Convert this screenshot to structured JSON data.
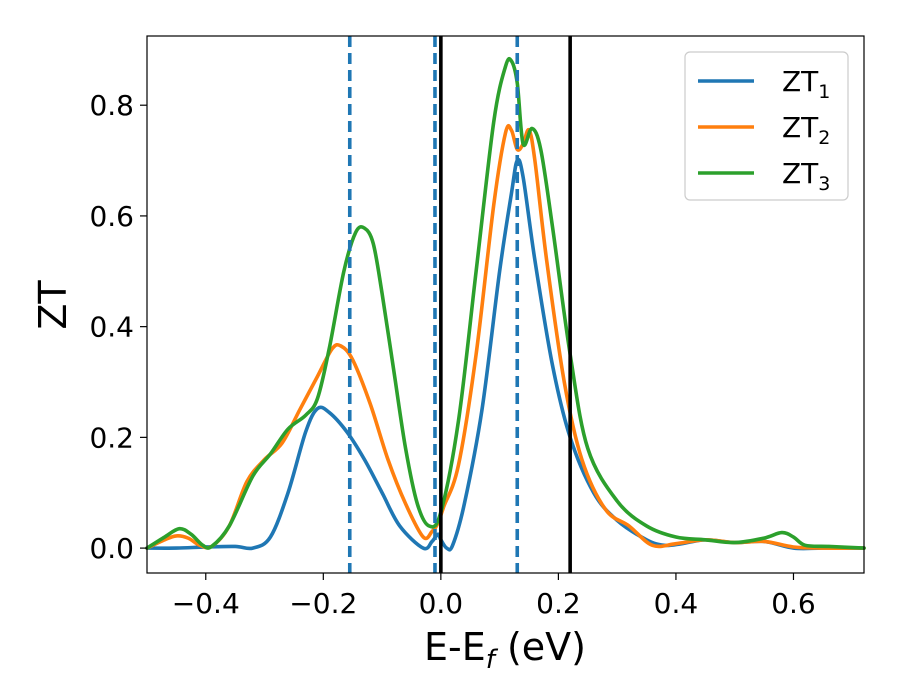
{
  "chart_data": {
    "type": "line",
    "title": "",
    "xlabel": "E-E",
    "xlabel_sub": "f",
    "xlabel_unit": " (eV)",
    "ylabel": "ZT",
    "xlim": [
      -0.5,
      0.72
    ],
    "ylim": [
      -0.045,
      0.925
    ],
    "xticks": [
      -0.4,
      -0.2,
      0.0,
      0.2,
      0.4,
      0.6
    ],
    "xtick_labels": [
      "−0.4",
      "−0.2",
      "0.0",
      "0.2",
      "0.4",
      "0.6"
    ],
    "yticks": [
      0.0,
      0.2,
      0.4,
      0.6,
      0.8
    ],
    "ytick_labels": [
      "0.0",
      "0.2",
      "0.4",
      "0.6",
      "0.8"
    ],
    "grid": false,
    "legend_position": "top-right",
    "vlines_dashed": {
      "color": "#1f77b4",
      "x": [
        -0.155,
        -0.01,
        0.13
      ]
    },
    "vlines_solid": {
      "color": "#000000",
      "x": [
        0.0,
        0.22
      ]
    },
    "series": [
      {
        "name": "ZT",
        "name_sub": "1",
        "color": "#1f77b4",
        "points": [
          [
            -0.5,
            0.0
          ],
          [
            -0.45,
            0.0
          ],
          [
            -0.4,
            0.002
          ],
          [
            -0.35,
            0.003
          ],
          [
            -0.32,
            0.0
          ],
          [
            -0.29,
            0.02
          ],
          [
            -0.26,
            0.1
          ],
          [
            -0.23,
            0.21
          ],
          [
            -0.21,
            0.252
          ],
          [
            -0.19,
            0.245
          ],
          [
            -0.16,
            0.21
          ],
          [
            -0.13,
            0.16
          ],
          [
            -0.1,
            0.1
          ],
          [
            -0.07,
            0.04
          ],
          [
            -0.03,
            0.0
          ],
          [
            -0.015,
            0.012
          ],
          [
            -0.005,
            0.025
          ],
          [
            0.0,
            0.015
          ],
          [
            0.01,
            0.0
          ],
          [
            0.02,
            0.005
          ],
          [
            0.04,
            0.08
          ],
          [
            0.07,
            0.25
          ],
          [
            0.1,
            0.5
          ],
          [
            0.12,
            0.64
          ],
          [
            0.13,
            0.7
          ],
          [
            0.14,
            0.67
          ],
          [
            0.16,
            0.52
          ],
          [
            0.19,
            0.33
          ],
          [
            0.22,
            0.2
          ],
          [
            0.26,
            0.1
          ],
          [
            0.3,
            0.05
          ],
          [
            0.35,
            0.015
          ],
          [
            0.38,
            0.005
          ],
          [
            0.41,
            0.008
          ],
          [
            0.45,
            0.015
          ],
          [
            0.5,
            0.01
          ],
          [
            0.55,
            0.012
          ],
          [
            0.6,
            0.0
          ],
          [
            0.65,
            0.0
          ],
          [
            0.72,
            0.0
          ]
        ]
      },
      {
        "name": "ZT",
        "name_sub": "2",
        "color": "#ff7f0e",
        "points": [
          [
            -0.5,
            0.0
          ],
          [
            -0.47,
            0.015
          ],
          [
            -0.45,
            0.022
          ],
          [
            -0.43,
            0.018
          ],
          [
            -0.41,
            0.005
          ],
          [
            -0.39,
            0.003
          ],
          [
            -0.36,
            0.04
          ],
          [
            -0.33,
            0.12
          ],
          [
            -0.3,
            0.16
          ],
          [
            -0.27,
            0.19
          ],
          [
            -0.24,
            0.25
          ],
          [
            -0.21,
            0.31
          ],
          [
            -0.185,
            0.36
          ],
          [
            -0.17,
            0.365
          ],
          [
            -0.15,
            0.34
          ],
          [
            -0.12,
            0.26
          ],
          [
            -0.09,
            0.16
          ],
          [
            -0.06,
            0.08
          ],
          [
            -0.03,
            0.02
          ],
          [
            -0.015,
            0.03
          ],
          [
            -0.005,
            0.045
          ],
          [
            0.005,
            0.075
          ],
          [
            0.03,
            0.15
          ],
          [
            0.06,
            0.35
          ],
          [
            0.09,
            0.62
          ],
          [
            0.11,
            0.75
          ],
          [
            0.12,
            0.755
          ],
          [
            0.13,
            0.72
          ],
          [
            0.14,
            0.73
          ],
          [
            0.15,
            0.755
          ],
          [
            0.16,
            0.7
          ],
          [
            0.18,
            0.52
          ],
          [
            0.21,
            0.3
          ],
          [
            0.24,
            0.16
          ],
          [
            0.28,
            0.07
          ],
          [
            0.32,
            0.04
          ],
          [
            0.36,
            0.005
          ],
          [
            0.4,
            0.008
          ],
          [
            0.45,
            0.015
          ],
          [
            0.5,
            0.01
          ],
          [
            0.55,
            0.012
          ],
          [
            0.6,
            0.002
          ],
          [
            0.65,
            0.0
          ],
          [
            0.72,
            0.0
          ]
        ]
      },
      {
        "name": "ZT",
        "name_sub": "3",
        "color": "#2ca02c",
        "points": [
          [
            -0.5,
            0.0
          ],
          [
            -0.47,
            0.02
          ],
          [
            -0.445,
            0.035
          ],
          [
            -0.425,
            0.025
          ],
          [
            -0.405,
            0.005
          ],
          [
            -0.39,
            0.003
          ],
          [
            -0.36,
            0.04
          ],
          [
            -0.32,
            0.13
          ],
          [
            -0.29,
            0.17
          ],
          [
            -0.26,
            0.215
          ],
          [
            -0.23,
            0.24
          ],
          [
            -0.21,
            0.27
          ],
          [
            -0.19,
            0.36
          ],
          [
            -0.165,
            0.5
          ],
          [
            -0.145,
            0.57
          ],
          [
            -0.13,
            0.578
          ],
          [
            -0.115,
            0.55
          ],
          [
            -0.1,
            0.46
          ],
          [
            -0.08,
            0.32
          ],
          [
            -0.06,
            0.18
          ],
          [
            -0.04,
            0.08
          ],
          [
            -0.02,
            0.04
          ],
          [
            0.0,
            0.065
          ],
          [
            0.03,
            0.23
          ],
          [
            0.06,
            0.5
          ],
          [
            0.09,
            0.77
          ],
          [
            0.11,
            0.87
          ],
          [
            0.12,
            0.88
          ],
          [
            0.13,
            0.84
          ],
          [
            0.14,
            0.73
          ],
          [
            0.155,
            0.758
          ],
          [
            0.17,
            0.72
          ],
          [
            0.19,
            0.58
          ],
          [
            0.22,
            0.35
          ],
          [
            0.25,
            0.18
          ],
          [
            0.3,
            0.085
          ],
          [
            0.35,
            0.04
          ],
          [
            0.4,
            0.02
          ],
          [
            0.45,
            0.015
          ],
          [
            0.5,
            0.01
          ],
          [
            0.55,
            0.018
          ],
          [
            0.58,
            0.028
          ],
          [
            0.6,
            0.02
          ],
          [
            0.62,
            0.005
          ],
          [
            0.66,
            0.003
          ],
          [
            0.72,
            0.0
          ]
        ]
      }
    ]
  }
}
